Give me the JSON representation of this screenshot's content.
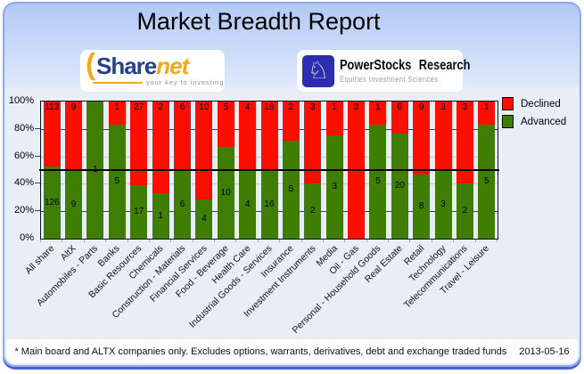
{
  "header": {
    "title": "Market Breadth Report"
  },
  "logos": {
    "sharenet": {
      "part1": "Share",
      "part2": "net",
      "tagline": "your key to investing"
    },
    "powerstocks": {
      "title": "PowerStocks Research",
      "tagline": "Equities Investment Sciences",
      "icon": "chess-knight-icon"
    }
  },
  "chart_data": {
    "type": "bar",
    "stacked": true,
    "orientation": "vertical",
    "title": "Market Breadth Report",
    "categories": [
      "All share",
      "AltX",
      "Automobiles - Parts",
      "Banks",
      "Basic Resources",
      "Chemicals",
      "Construction - Materials",
      "Financial Services",
      "Food - Beverage",
      "Health Care",
      "Industrial Goods - Services",
      "Insurance",
      "Investment Instruments",
      "Media",
      "Oil - Gas",
      "Personal - Household Goods",
      "Real Estate",
      "Retail",
      "Technology",
      "Telecommunications",
      "Travel - Leisure"
    ],
    "series": [
      {
        "name": "Declined",
        "color": "#fb0f00",
        "values": [
          113,
          9,
          0,
          1,
          27,
          2,
          6,
          10,
          5,
          4,
          16,
          2,
          3,
          1,
          3,
          1,
          6,
          9,
          3,
          3,
          1
        ]
      },
      {
        "name": "Advanced",
        "color": "#407d05",
        "values": [
          126,
          9,
          1,
          5,
          17,
          1,
          6,
          4,
          10,
          4,
          16,
          5,
          2,
          3,
          0,
          5,
          20,
          8,
          3,
          2,
          5
        ]
      }
    ],
    "y_ticks": [
      "0%",
      "20%",
      "40%",
      "60%",
      "80%",
      "100%"
    ],
    "ylim": [
      0,
      100
    ],
    "gridlines": [
      20,
      40,
      60,
      80
    ],
    "midline": 50,
    "legend_position": "top-right"
  },
  "footer": {
    "note": "* Main board and ALTX companies only. Excludes options, warrants, derivatives, debt and exchange traded funds",
    "date": "2013-05-16"
  },
  "colors": {
    "declined": "#fb0f00",
    "advanced": "#407d05",
    "card_border": "#8caaec",
    "card_gradient_top": "#b2c9f5",
    "card_gradient_bottom": "#dfe9fc",
    "chart_bg": "#e8eef6",
    "card_shadow": "#4c63cf",
    "grid_major": "#2b3a9e",
    "grid_minor": "#c6ccd6",
    "sharenet_blue": "#24418e",
    "sharenet_orange": "#f5a91d",
    "powerstocks_navy": "#2d2db0"
  }
}
